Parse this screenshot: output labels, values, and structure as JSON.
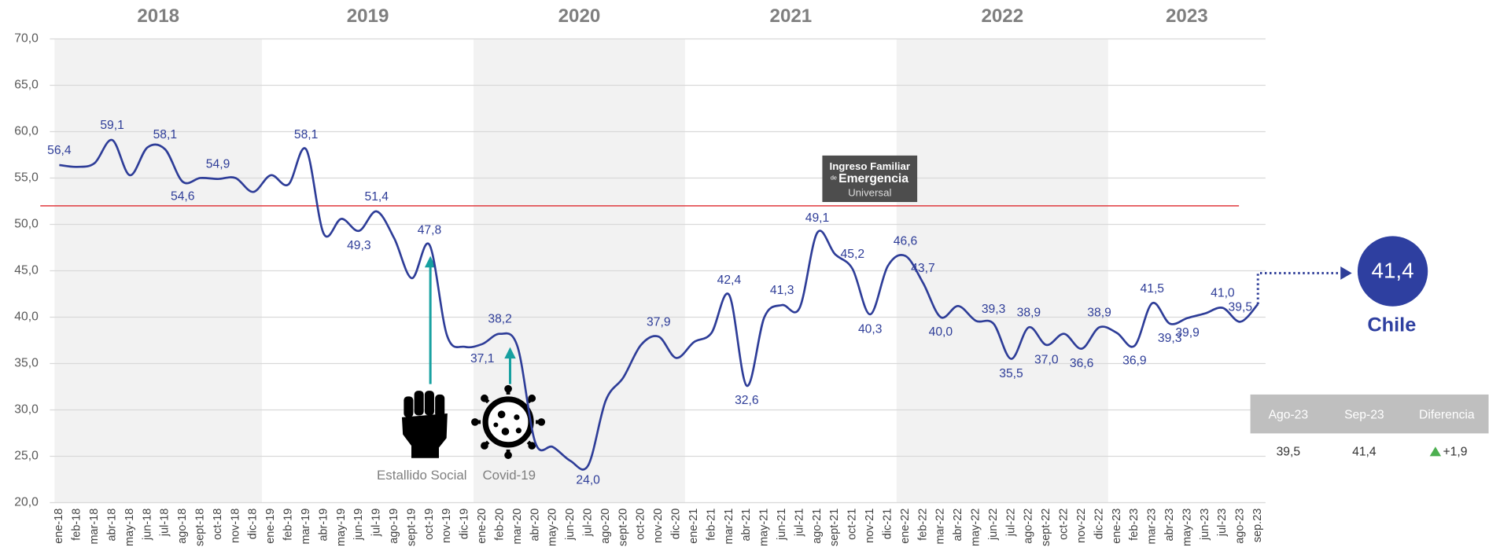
{
  "chart_data": {
    "type": "line",
    "years": [
      "2018",
      "2019",
      "2020",
      "2021",
      "2022",
      "2023"
    ],
    "categories": [
      "ene-18",
      "feb-18",
      "mar-18",
      "abr-18",
      "may-18",
      "jun-18",
      "jul-18",
      "ago-18",
      "sept-18",
      "oct-18",
      "nov-18",
      "dic-18",
      "ene-19",
      "feb-19",
      "mar-19",
      "abr-19",
      "may-19",
      "jun-19",
      "jul-19",
      "ago-19",
      "sept-19",
      "oct-19",
      "nov-19",
      "dic-19",
      "ene-20",
      "feb-20",
      "mar-20",
      "abr-20",
      "may-20",
      "jun-20",
      "jul-20",
      "ago-20",
      "sept-20",
      "oct-20",
      "nov-20",
      "dic-20",
      "ene-21",
      "feb-21",
      "mar-21",
      "abr-21",
      "may-21",
      "jun-21",
      "jul-21",
      "ago-21",
      "sept-21",
      "oct-21",
      "nov-21",
      "dic-21",
      "ene-22",
      "feb-22",
      "mar-22",
      "abr-22",
      "may-22",
      "jun-22",
      "jul-22",
      "ago-22",
      "sept-22",
      "oct-22",
      "nov-22",
      "dic-22",
      "ene-23",
      "feb-23",
      "mar-23",
      "abr-23",
      "may-23",
      "jun-23",
      "jul-23",
      "ago-23",
      "sep.23"
    ],
    "series": [
      {
        "name": "Chile",
        "color": "#2e3d98",
        "values": [
          56.4,
          56.2,
          56.6,
          59.1,
          55.3,
          58.3,
          58.1,
          54.6,
          55.0,
          54.9,
          55.0,
          53.5,
          55.3,
          54.3,
          58.1,
          49.0,
          50.6,
          49.3,
          51.4,
          48.5,
          44.2,
          47.8,
          38.0,
          36.8,
          37.1,
          38.2,
          36.8,
          26.5,
          26.0,
          24.5,
          24.0,
          31.0,
          33.5,
          37.0,
          37.9,
          35.6,
          37.3,
          38.3,
          42.4,
          32.6,
          40.0,
          41.3,
          41.0,
          49.1,
          46.8,
          45.2,
          40.3,
          45.5,
          46.6,
          43.7,
          40.0,
          41.2,
          39.6,
          39.3,
          35.5,
          38.9,
          37.0,
          38.2,
          36.6,
          38.9,
          38.3,
          36.9,
          41.5,
          39.3,
          39.9,
          40.4,
          41.0,
          39.5,
          41.4
        ],
        "value_labels": [
          "56,4",
          null,
          null,
          "59,1",
          null,
          null,
          "58,1",
          "54,6",
          null,
          "54,9",
          null,
          null,
          null,
          null,
          "58,1",
          null,
          null,
          "49,3",
          "51,4",
          null,
          null,
          "47,8",
          null,
          null,
          "37,1",
          "38,2",
          null,
          null,
          null,
          null,
          "24,0",
          null,
          null,
          null,
          "37,9",
          null,
          null,
          null,
          "42,4",
          "32,6",
          null,
          "41,3",
          null,
          "49,1",
          null,
          "45,2",
          "40,3",
          null,
          "46,6",
          "43,7",
          "40,0",
          null,
          null,
          "39,3",
          "35,5",
          "38,9",
          "37,0",
          null,
          "36,6",
          "38,9",
          null,
          "36,9",
          "41,5",
          "39,3",
          "39,9",
          null,
          "41,0",
          "39,5",
          null
        ]
      }
    ],
    "ylim": [
      20,
      70
    ],
    "yticks": [
      {
        "value": 20,
        "label": "20,0"
      },
      {
        "value": 25,
        "label": "25,0"
      },
      {
        "value": 30,
        "label": "30,0"
      },
      {
        "value": 35,
        "label": "35,0"
      },
      {
        "value": 40,
        "label": "40,0"
      },
      {
        "value": 45,
        "label": "45,0"
      },
      {
        "value": 50,
        "label": "50,0"
      },
      {
        "value": 55,
        "label": "55,0"
      },
      {
        "value": 60,
        "label": "60,0"
      },
      {
        "value": 65,
        "label": "65,0"
      },
      {
        "value": 70,
        "label": "70,0"
      }
    ],
    "grid": true,
    "reference_line": {
      "value": 52,
      "color": "#e0393e"
    },
    "annotations": {
      "events": [
        "Estallido Social",
        "Covid-19"
      ],
      "logo": [
        "Ingreso Familiar",
        "de",
        "Emergencia",
        "Universal"
      ]
    },
    "highlight_label": "41,4",
    "table": {
      "headers": [
        "Ago-23",
        "Sep-23",
        "Diferencia"
      ],
      "rows": [
        [
          "39,5",
          "41,4",
          "+1,9"
        ]
      ]
    }
  }
}
